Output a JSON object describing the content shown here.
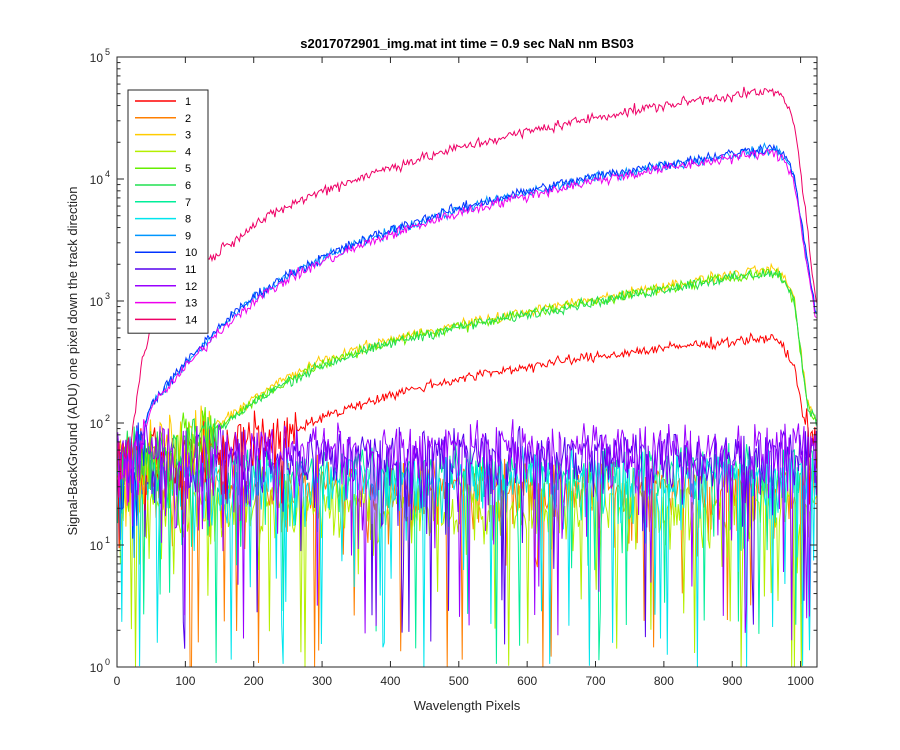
{
  "chart_data": {
    "type": "line",
    "title": "s2017072901_img.mat int time = 0.9 sec  NaN nm BS03",
    "xlabel": "Wavelength Pixels",
    "ylabel": "Signal-BackGround (ADU) one pixel down the track direction",
    "xlim": [
      0,
      1024
    ],
    "ylim": [
      1,
      100000
    ],
    "yscale": "log",
    "xticks": [
      0,
      100,
      200,
      300,
      400,
      500,
      600,
      700,
      800,
      900,
      1000
    ],
    "yticks": [
      1,
      10,
      100,
      1000,
      10000,
      100000
    ],
    "ytick_labels": [
      {
        "base": "10",
        "exp": "0"
      },
      {
        "base": "10",
        "exp": "1"
      },
      {
        "base": "10",
        "exp": "2"
      },
      {
        "base": "10",
        "exp": "3"
      },
      {
        "base": "10",
        "exp": "4"
      },
      {
        "base": "10",
        "exp": "5"
      }
    ],
    "grid": false,
    "legend_position": "top-left",
    "x": [
      0,
      20,
      35,
      50,
      100,
      150,
      200,
      250,
      300,
      350,
      400,
      450,
      500,
      550,
      600,
      650,
      700,
      750,
      800,
      850,
      900,
      950,
      970,
      990,
      1010,
      1024
    ],
    "series": [
      {
        "name": "1",
        "color": "#ff0000",
        "kind": "signal",
        "values": [
          50,
          50,
          50,
          50,
          55,
          60,
          70,
          85,
          110,
          140,
          170,
          200,
          230,
          260,
          290,
          320,
          350,
          380,
          410,
          440,
          470,
          500,
          460,
          300,
          80,
          60
        ]
      },
      {
        "name": "2",
        "color": "#ff7f00",
        "kind": "noise",
        "level": 30
      },
      {
        "name": "3",
        "color": "#ffcc00",
        "kind": "signal",
        "values": [
          50,
          50,
          55,
          60,
          70,
          100,
          160,
          240,
          320,
          400,
          480,
          560,
          640,
          720,
          820,
          920,
          1040,
          1180,
          1320,
          1480,
          1650,
          1800,
          1750,
          1100,
          150,
          100
        ]
      },
      {
        "name": "4",
        "color": "#b5ef00",
        "kind": "noise",
        "level": 20
      },
      {
        "name": "5",
        "color": "#66ee00",
        "kind": "signal",
        "values": [
          50,
          50,
          55,
          60,
          68,
          95,
          150,
          225,
          300,
          380,
          460,
          540,
          620,
          700,
          790,
          890,
          1000,
          1130,
          1270,
          1420,
          1580,
          1700,
          1650,
          1050,
          140,
          100
        ]
      },
      {
        "name": "6",
        "color": "#20e050",
        "kind": "signal",
        "values": [
          50,
          50,
          55,
          60,
          66,
          92,
          145,
          220,
          295,
          370,
          450,
          530,
          610,
          690,
          780,
          880,
          990,
          1110,
          1250,
          1400,
          1560,
          1680,
          1630,
          1040,
          140,
          100
        ]
      },
      {
        "name": "7",
        "color": "#00ee99",
        "kind": "noise",
        "level": 40
      },
      {
        "name": "8",
        "color": "#00e5ee",
        "kind": "noise",
        "level": 35
      },
      {
        "name": "9",
        "color": "#0096ff",
        "kind": "signal",
        "values": [
          50,
          50,
          70,
          140,
          300,
          600,
          1050,
          1600,
          2200,
          2900,
          3700,
          4600,
          5600,
          6600,
          7700,
          8900,
          10200,
          11500,
          12800,
          14200,
          15800,
          17500,
          17000,
          11000,
          2000,
          700
        ]
      },
      {
        "name": "10",
        "color": "#0033ff",
        "kind": "signal",
        "values": [
          50,
          50,
          72,
          145,
          310,
          620,
          1080,
          1650,
          2270,
          2990,
          3810,
          4740,
          5770,
          6800,
          7930,
          9170,
          10500,
          11850,
          13200,
          14630,
          16270,
          18000,
          17500,
          11300,
          2100,
          700
        ]
      },
      {
        "name": "11",
        "color": "#5500ee",
        "kind": "noise",
        "level": 55
      },
      {
        "name": "12",
        "color": "#9900ff",
        "kind": "noise",
        "level": 60
      },
      {
        "name": "13",
        "color": "#ee00ee",
        "kind": "signal",
        "values": [
          50,
          50,
          68,
          135,
          285,
          570,
          1000,
          1520,
          2090,
          2750,
          3500,
          4350,
          5300,
          6250,
          7300,
          8450,
          9700,
          10900,
          12150,
          13500,
          15000,
          16300,
          15800,
          10200,
          1900,
          650
        ]
      },
      {
        "name": "14",
        "color": "#ee0066",
        "kind": "signal",
        "values": [
          55,
          60,
          300,
          600,
          1400,
          2600,
          4200,
          6000,
          8000,
          10000,
          12500,
          15000,
          18000,
          21000,
          24500,
          28000,
          32000,
          36000,
          40000,
          44500,
          48500,
          52000,
          50000,
          32000,
          4000,
          800
        ]
      }
    ]
  }
}
